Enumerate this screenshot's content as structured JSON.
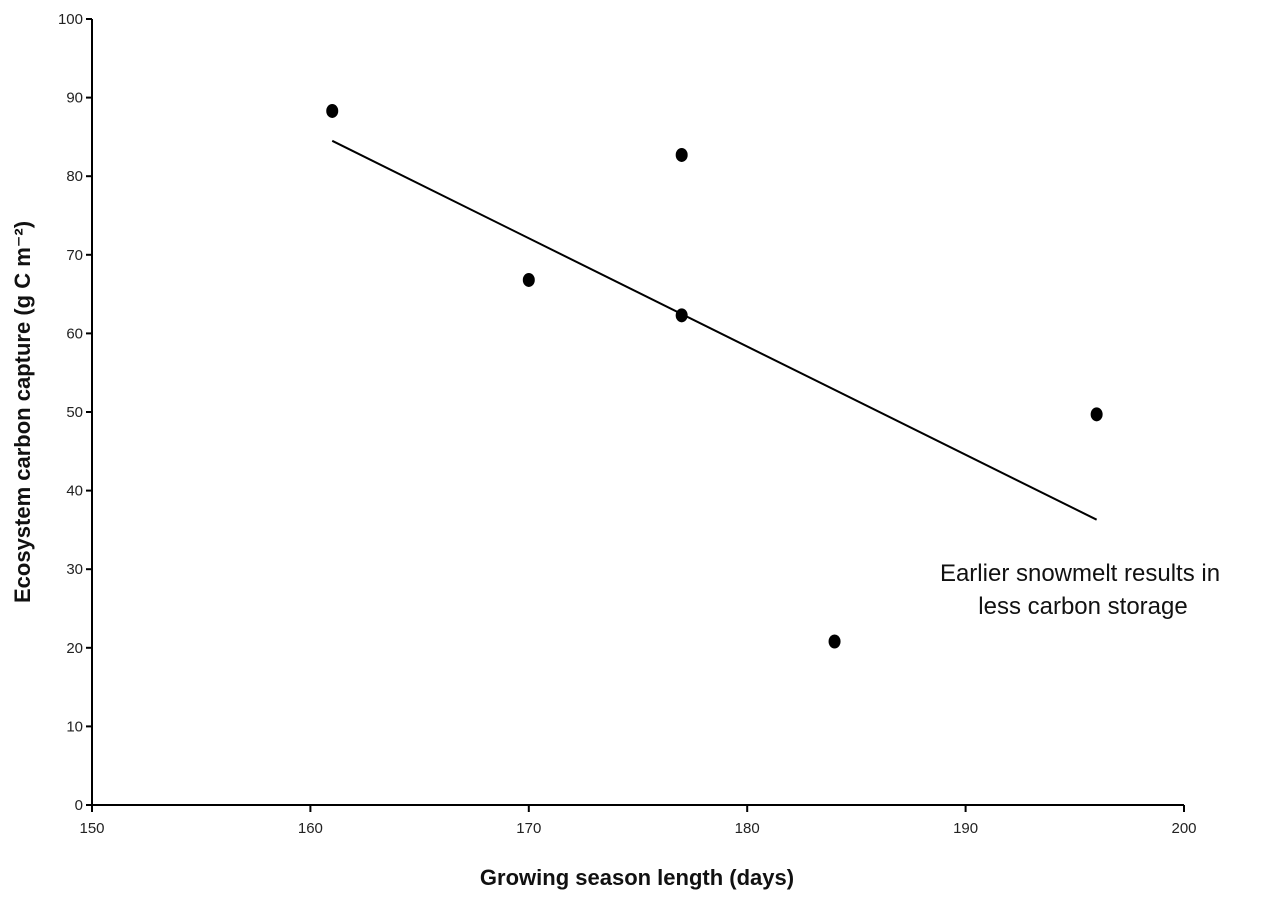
{
  "chart_data": {
    "type": "scatter",
    "title": "",
    "xlabel": "Growing season length (days)",
    "ylabel": "Ecosystem carbon capture (g C m⁻²)",
    "xlim": [
      150,
      200
    ],
    "ylim": [
      0,
      100
    ],
    "xticks": [
      "150",
      "160",
      "170",
      "180",
      "190",
      "200"
    ],
    "yticks": [
      "0",
      "10",
      "20",
      "30",
      "40",
      "50",
      "60",
      "70",
      "80",
      "90",
      "100"
    ],
    "grid": false,
    "legend": "none",
    "points": [
      {
        "x": 161,
        "y": 88.3
      },
      {
        "x": 170,
        "y": 66.8
      },
      {
        "x": 177,
        "y": 82.7
      },
      {
        "x": 177,
        "y": 62.3
      },
      {
        "x": 184,
        "y": 20.8
      },
      {
        "x": 196,
        "y": 49.7
      }
    ],
    "trendline": {
      "x": [
        161,
        196
      ],
      "y": [
        84.5,
        36.3
      ]
    },
    "annotation": {
      "lines": [
        "Earlier snowmelt results in",
        "less carbon storage"
      ]
    },
    "colors": {
      "marker": "#000000",
      "line": "#000000",
      "axis": "#000000"
    }
  }
}
